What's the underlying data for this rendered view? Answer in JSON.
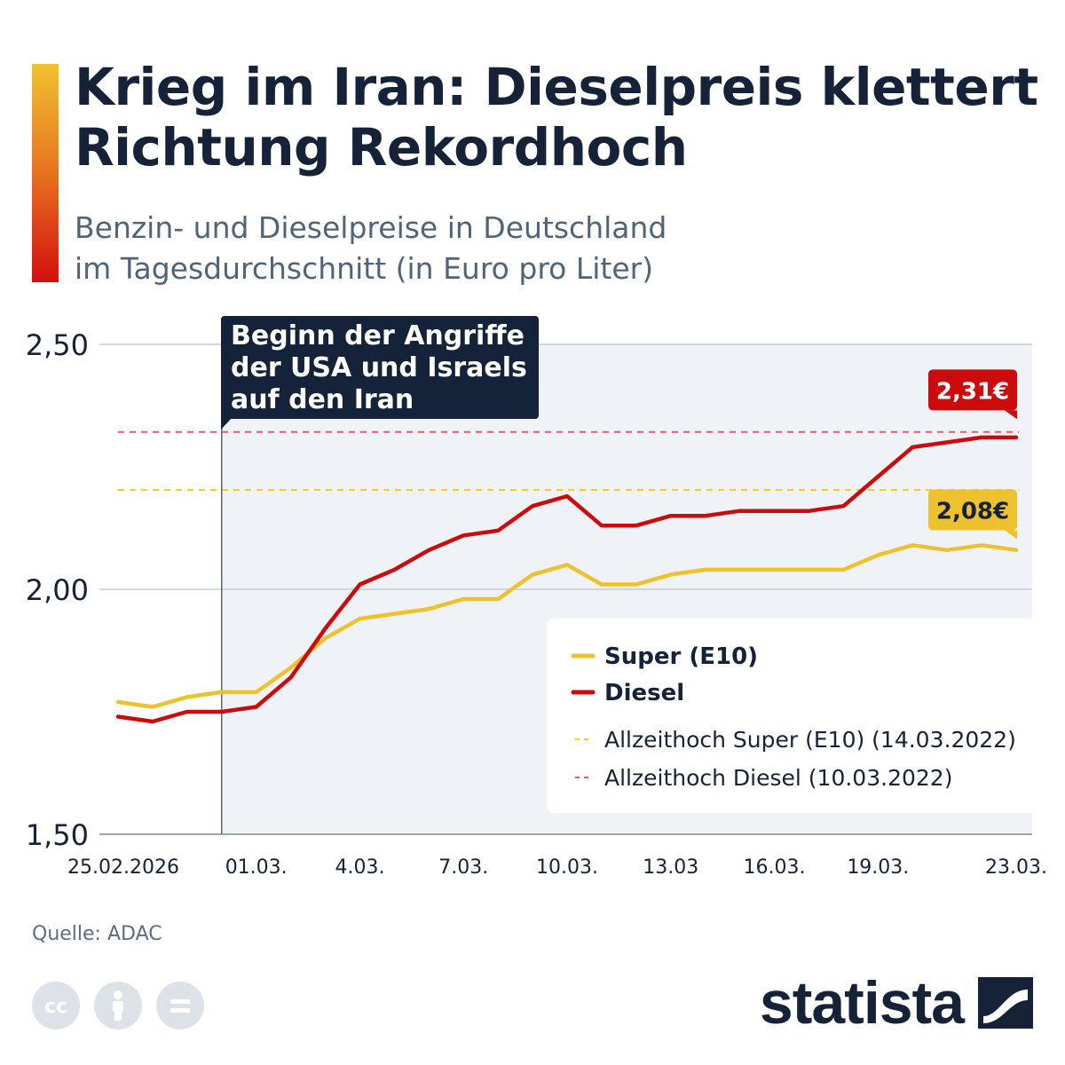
{
  "header": {
    "title": "Krieg im Iran: Dieselpreis klettert Richtung Rekordhoch",
    "subtitle_line1": "Benzin- und Dieselpreise in Deutschland",
    "subtitle_line2": "im Tagesdurchschnitt (in Euro pro Liter)"
  },
  "annotation": {
    "lines": [
      "Beginn der Angriffe",
      "der USA und Israels",
      "auf den Iran"
    ]
  },
  "legend": {
    "super_label": "Super (E10)",
    "diesel_label": "Diesel",
    "super_high_label": "Allzeithoch Super (E10) (14.03.2022)",
    "diesel_high_label": "Allzeithoch Diesel (10.03.2022)"
  },
  "colors": {
    "super": "#eec12e",
    "diesel": "#cc0c0c",
    "super_high": "#f2cd25",
    "diesel_high": "#ee5a5a",
    "plot_bg": "#eff3f7",
    "annotation_bg": "#14233a"
  },
  "chart_data": {
    "type": "line",
    "x": [
      "25.02.2026",
      "26.02.",
      "27.02.",
      "28.02.",
      "01.03.",
      "02.03.",
      "03.03.",
      "04.03.",
      "05.03.",
      "06.03.",
      "07.03.",
      "08.03.",
      "09.03.",
      "10.03.",
      "11.03.",
      "12.03.",
      "13.03",
      "14.03.",
      "15.03.",
      "16.03.",
      "17.03.",
      "18.03.",
      "19.03.",
      "20.03.",
      "21.03.",
      "22.03.",
      "23.03."
    ],
    "x_tick_labels": [
      "25.02.2026",
      "01.03.",
      "4.03.",
      "7.03.",
      "10.03.",
      "13.03",
      "16.03.",
      "19.03.",
      "23.03."
    ],
    "x_tick_indices": [
      0,
      4,
      7,
      10,
      13,
      16,
      19,
      22,
      26
    ],
    "series": [
      {
        "name": "Super (E10)",
        "values": [
          1.77,
          1.76,
          1.78,
          1.79,
          1.79,
          1.84,
          1.9,
          1.94,
          1.95,
          1.96,
          1.98,
          1.98,
          2.03,
          2.05,
          2.01,
          2.01,
          2.03,
          2.04,
          2.04,
          2.04,
          2.04,
          2.04,
          2.07,
          2.09,
          2.08,
          2.09,
          2.08
        ]
      },
      {
        "name": "Diesel",
        "values": [
          1.74,
          1.73,
          1.75,
          1.75,
          1.76,
          1.82,
          1.92,
          2.01,
          2.04,
          2.08,
          2.11,
          2.12,
          2.17,
          2.19,
          2.13,
          2.13,
          2.15,
          2.15,
          2.16,
          2.16,
          2.16,
          2.17,
          2.23,
          2.29,
          2.3,
          2.31,
          2.31
        ]
      }
    ],
    "reference_lines": [
      {
        "name": "Allzeithoch Super (E10) (14.03.2022)",
        "value": 2.203
      },
      {
        "name": "Allzeithoch Diesel (10.03.2022)",
        "value": 2.321
      }
    ],
    "end_labels": {
      "super": "2,08€",
      "diesel": "2,31€"
    },
    "event_index": 3,
    "y_ticks": [
      1.5,
      2.0,
      2.5
    ],
    "y_tick_labels": [
      "1,50",
      "2,00",
      "2,50"
    ],
    "ylim": [
      1.5,
      2.5
    ],
    "grid": true,
    "legend_position": "bottom-right"
  },
  "footer": {
    "source": "Quelle: ADAC",
    "logo": "statista",
    "license_icons": [
      "cc-icon",
      "attribution-icon",
      "no-derivatives-icon"
    ]
  }
}
